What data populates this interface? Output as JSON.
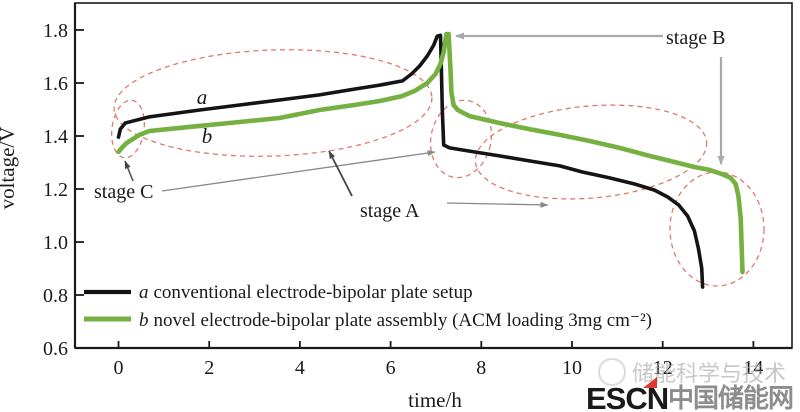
{
  "figure": {
    "x_axis": {
      "label": "time/h",
      "tick_labels": [
        "0",
        "2",
        "4",
        "6",
        "8",
        "10",
        "12",
        "14"
      ],
      "tick_values": [
        0,
        2,
        4,
        6,
        8,
        10,
        12,
        14
      ]
    },
    "y_axis": {
      "label": "voltage/V",
      "tick_labels": [
        "0.6",
        "0.8",
        "1.0",
        "1.2",
        "1.4",
        "1.6",
        "1.8"
      ],
      "tick_values": [
        0.6,
        0.8,
        1.0,
        1.2,
        1.4,
        1.6,
        1.8
      ]
    }
  },
  "annotations": {
    "stage_a": "stage A",
    "stage_b": "stage B",
    "stage_c": "stage C",
    "curve_a_inline_label": "a",
    "curve_b_inline_label": "b"
  },
  "legend": [
    {
      "prefix": "a",
      "label": "conventional electrode-bipolar plate setup",
      "marker_color": "#141414"
    },
    {
      "prefix": "b",
      "label": "novel electrode-bipolar plate assembly (ACM loading 3mg cm⁻²)",
      "marker_color": "#76b041"
    }
  ],
  "watermark": {
    "overlay_text": "储能科学与技术",
    "logo_escn": "ESCN",
    "logo_cn": "中国储能网"
  },
  "colors": {
    "curve_a": "#141414",
    "curve_b": "#76b041",
    "highlight_dashed": "#e0796a",
    "callout_light_gray": "#a9a9a9",
    "escn_blue": "#2a80c8",
    "escn_red": "#d93025"
  },
  "chart_data": {
    "type": "line",
    "title": "",
    "xlabel": "time/h",
    "ylabel": "voltage/V",
    "xlim": [
      -0.93,
      14.87
    ],
    "ylim": [
      0.6,
      1.9
    ],
    "x_ticks": [
      0,
      2,
      4,
      6,
      8,
      10,
      12,
      14
    ],
    "y_ticks": [
      0.6,
      0.8,
      1.0,
      1.2,
      1.4,
      1.6,
      1.8
    ],
    "grid": false,
    "legend_position": "lower left",
    "annotations": [
      "stage A",
      "stage B",
      "stage C"
    ],
    "series": [
      {
        "name": "a conventional electrode-bipolar plate setup",
        "color": "#141414",
        "points": [
          [
            0,
            1.396
          ],
          [
            0.04,
            1.426
          ],
          [
            0.15,
            1.449
          ],
          [
            0.68,
            1.472
          ],
          [
            1.79,
            1.498
          ],
          [
            2.67,
            1.517
          ],
          [
            3.55,
            1.536
          ],
          [
            4.43,
            1.555
          ],
          [
            5.2,
            1.577
          ],
          [
            5.76,
            1.592
          ],
          [
            6.26,
            1.608
          ],
          [
            6.46,
            1.634
          ],
          [
            6.64,
            1.664
          ],
          [
            6.81,
            1.702
          ],
          [
            6.95,
            1.743
          ],
          [
            7.03,
            1.777
          ],
          [
            7.1,
            1.78
          ],
          [
            7.12,
            1.649
          ],
          [
            7.14,
            1.498
          ],
          [
            7.17,
            1.366
          ],
          [
            7.3,
            1.355
          ],
          [
            7.74,
            1.343
          ],
          [
            8.4,
            1.325
          ],
          [
            9.06,
            1.306
          ],
          [
            9.73,
            1.287
          ],
          [
            10.23,
            1.264
          ],
          [
            10.83,
            1.242
          ],
          [
            11.38,
            1.219
          ],
          [
            11.82,
            1.196
          ],
          [
            12.11,
            1.17
          ],
          [
            12.35,
            1.14
          ],
          [
            12.55,
            1.098
          ],
          [
            12.7,
            1.042
          ],
          [
            12.79,
            0.974
          ],
          [
            12.86,
            0.902
          ],
          [
            12.88,
            0.83
          ]
        ]
      },
      {
        "name": "b novel electrode-bipolar plate assembly (ACM loading 3mg cm⁻²)",
        "color": "#76b041",
        "points": [
          [
            0,
            1.34
          ],
          [
            0.07,
            1.355
          ],
          [
            0.18,
            1.374
          ],
          [
            0.46,
            1.404
          ],
          [
            0.68,
            1.419
          ],
          [
            1.79,
            1.438
          ],
          [
            2.67,
            1.453
          ],
          [
            3.55,
            1.468
          ],
          [
            4.43,
            1.498
          ],
          [
            5.2,
            1.517
          ],
          [
            5.76,
            1.532
          ],
          [
            6.26,
            1.551
          ],
          [
            6.53,
            1.57
          ],
          [
            6.81,
            1.6
          ],
          [
            6.99,
            1.634
          ],
          [
            7.1,
            1.672
          ],
          [
            7.17,
            1.717
          ],
          [
            7.23,
            1.785
          ],
          [
            7.28,
            1.785
          ],
          [
            7.32,
            1.649
          ],
          [
            7.34,
            1.566
          ],
          [
            7.39,
            1.517
          ],
          [
            7.48,
            1.498
          ],
          [
            7.74,
            1.475
          ],
          [
            8.4,
            1.449
          ],
          [
            9.06,
            1.426
          ],
          [
            9.73,
            1.404
          ],
          [
            10.39,
            1.381
          ],
          [
            11.05,
            1.355
          ],
          [
            11.71,
            1.325
          ],
          [
            12.26,
            1.302
          ],
          [
            12.7,
            1.283
          ],
          [
            13.03,
            1.272
          ],
          [
            13.3,
            1.257
          ],
          [
            13.5,
            1.242
          ],
          [
            13.61,
            1.219
          ],
          [
            13.67,
            1.174
          ],
          [
            13.72,
            1.091
          ],
          [
            13.74,
            0.989
          ],
          [
            13.76,
            0.887
          ]
        ]
      }
    ]
  }
}
